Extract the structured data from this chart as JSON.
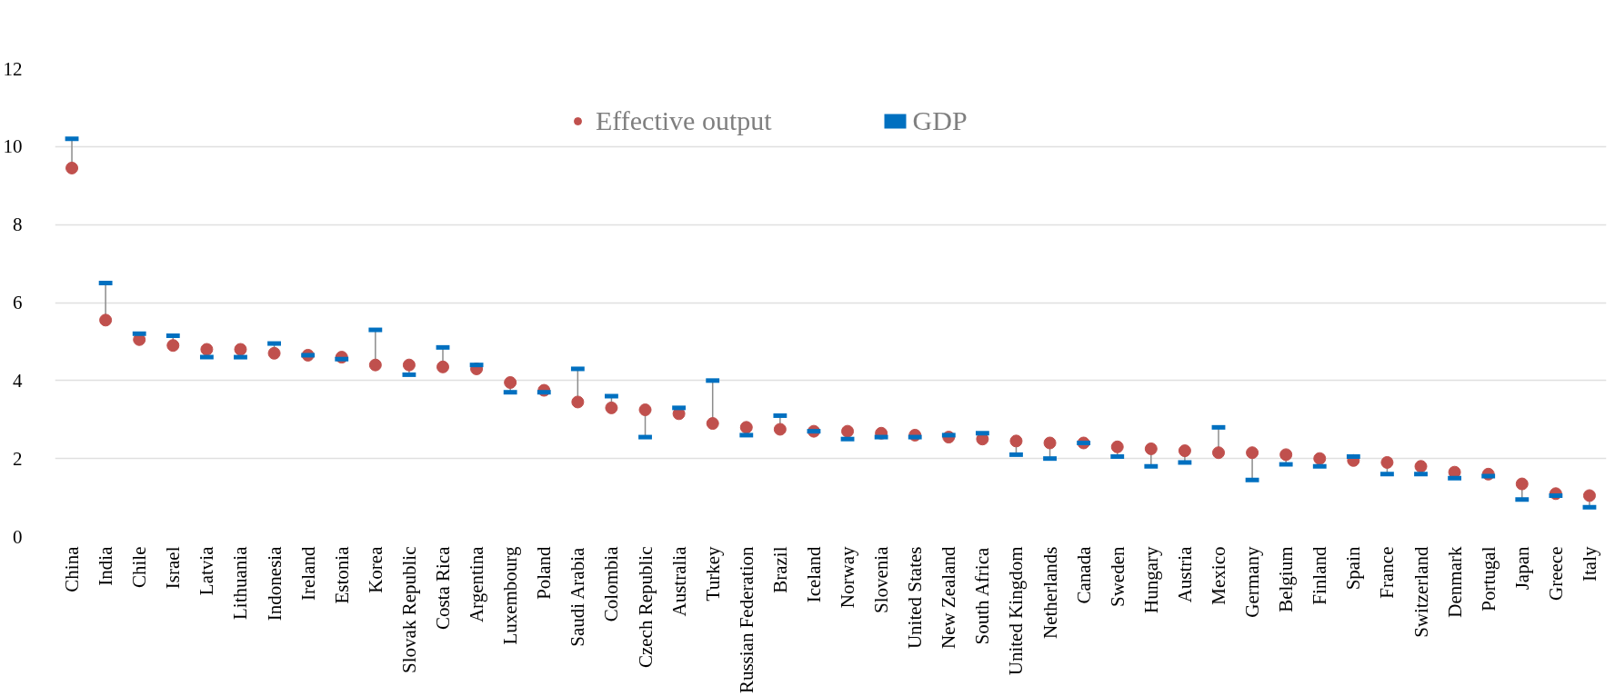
{
  "chart_data": {
    "type": "scatter",
    "legend": "top",
    "grid": "y",
    "ylim": [
      0,
      12
    ],
    "yticks": [
      0,
      2,
      4,
      6,
      8,
      10,
      12
    ],
    "categories": [
      "China",
      "India",
      "Chile",
      "Israel",
      "Latvia",
      "Lithuania",
      "Indonesia",
      "Ireland",
      "Estonia",
      "Korea",
      "Slovak Republic",
      "Costa Rica",
      "Argentina",
      "Luxembourg",
      "Poland",
      "Saudi Arabia",
      "Colombia",
      "Czech Republic",
      "Australia",
      "Turkey",
      "Russian Federation",
      "Brazil",
      "Iceland",
      "Norway",
      "Slovenia",
      "United States",
      "New Zealand",
      "South Africa",
      "United Kingdom",
      "Netherlands",
      "Canada",
      "Sweden",
      "Hungary",
      "Austria",
      "Mexico",
      "Germany",
      "Belgium",
      "Finland",
      "Spain",
      "France",
      "Switzerland",
      "Denmark",
      "Portugal",
      "Japan",
      "Greece",
      "Italy"
    ],
    "series": [
      {
        "name": "Effective output",
        "color": "#c0504d",
        "marker": "circle",
        "values": [
          9.45,
          5.55,
          5.05,
          4.9,
          4.8,
          4.8,
          4.7,
          4.65,
          4.6,
          4.4,
          4.4,
          4.35,
          4.3,
          3.95,
          3.75,
          3.45,
          3.3,
          3.25,
          3.15,
          2.9,
          2.8,
          2.75,
          2.7,
          2.7,
          2.65,
          2.6,
          2.55,
          2.5,
          2.45,
          2.4,
          2.4,
          2.3,
          2.25,
          2.2,
          2.15,
          2.15,
          2.1,
          2.0,
          1.95,
          1.9,
          1.8,
          1.65,
          1.6,
          1.35,
          1.1,
          1.05
        ]
      },
      {
        "name": "GDP",
        "color": "#0070c0",
        "values": [
          10.2,
          6.5,
          5.2,
          5.15,
          4.6,
          4.6,
          4.95,
          4.65,
          4.55,
          5.3,
          4.15,
          4.85,
          4.4,
          3.7,
          3.7,
          4.3,
          3.6,
          2.55,
          3.3,
          4.0,
          2.6,
          3.1,
          2.7,
          2.5,
          2.55,
          2.55,
          2.6,
          2.65,
          2.1,
          2.0,
          2.4,
          2.05,
          1.8,
          1.9,
          2.8,
          1.45,
          1.85,
          1.8,
          2.05,
          1.6,
          1.6,
          1.5,
          1.55,
          0.95,
          1.05,
          0.75
        ]
      }
    ]
  }
}
